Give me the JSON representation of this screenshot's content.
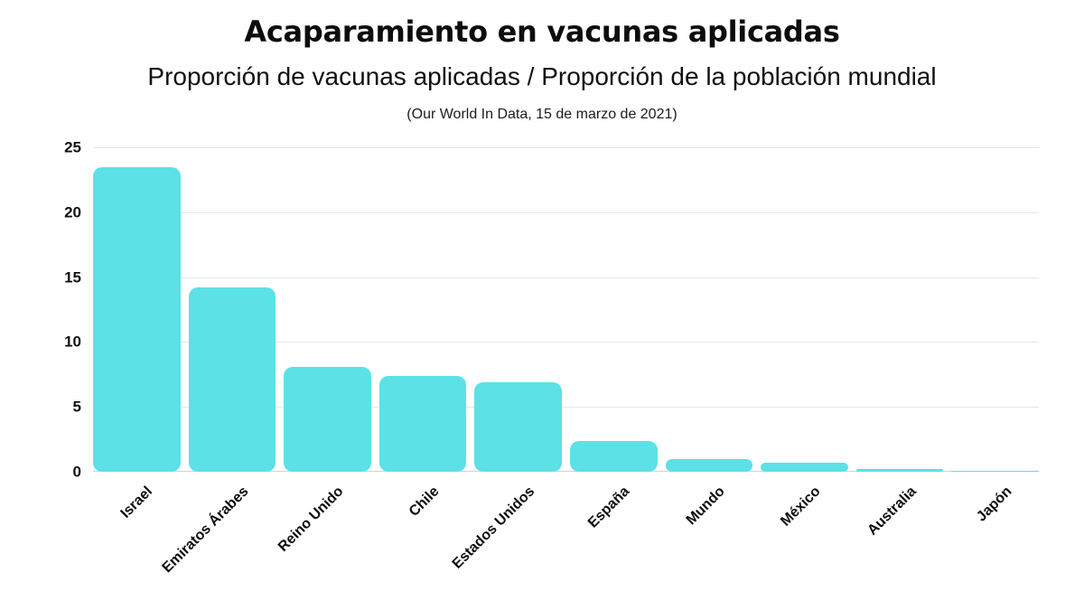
{
  "header": {
    "title": "Acaparamiento en vacunas aplicadas",
    "subtitle": "Proporción de vacunas aplicadas / Proporción de la población mundial",
    "source": "(Our World In Data, 15 de marzo de 2021)"
  },
  "chart_data": {
    "type": "bar",
    "title": "Acaparamiento en vacunas aplicadas",
    "subtitle": "Proporción de vacunas aplicadas / Proporción de la población mundial",
    "annotation": "(Our World In Data, 15 de marzo de 2021)",
    "categories": [
      "Israel",
      "Emiratos Árabes",
      "Reino Unido",
      "Chile",
      "Estados Unidos",
      "España",
      "Mundo",
      "México",
      "Australia",
      "Japón"
    ],
    "values": [
      23.5,
      14.2,
      8.1,
      7.4,
      6.9,
      2.4,
      1.0,
      0.7,
      0.2,
      0.08
    ],
    "xlabel": "",
    "ylabel": "",
    "ylim": [
      0,
      25
    ],
    "yticks": [
      0,
      5,
      10,
      15,
      20,
      25
    ],
    "grid": true,
    "legend": "none",
    "colors": {
      "bar_fill": "#5CE1E6",
      "gridline": "#e6e6e6",
      "baseline": "#d2d2d2",
      "text": "#0d0d0d",
      "background": "#ffffff"
    }
  }
}
